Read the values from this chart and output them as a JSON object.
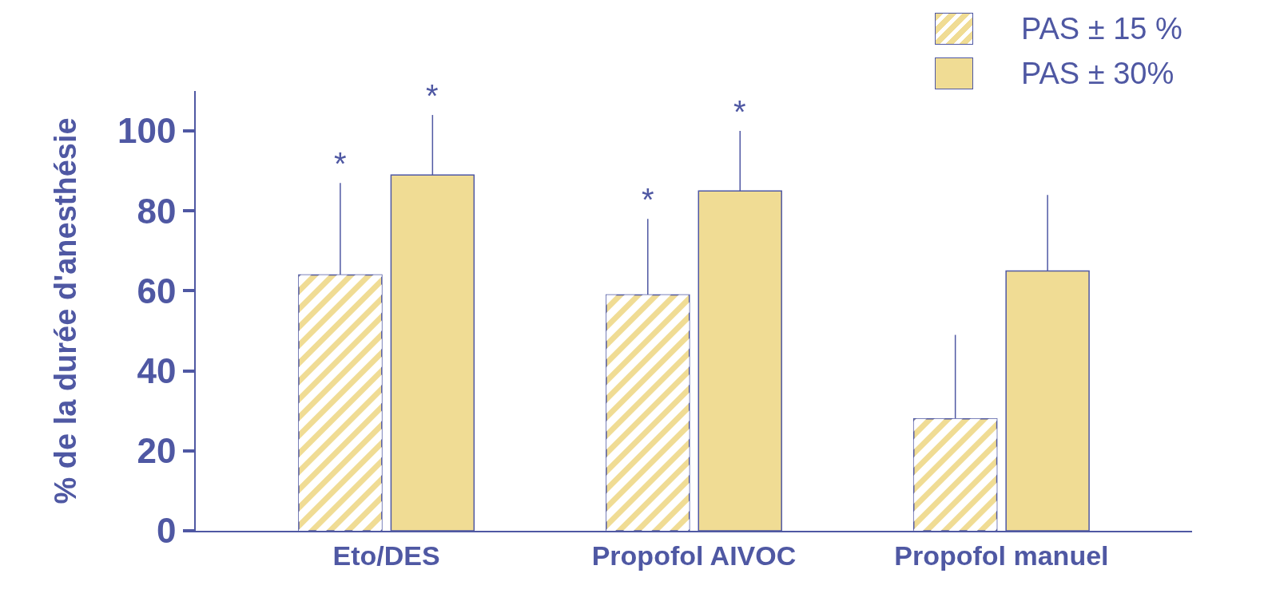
{
  "chart_data": {
    "type": "bar",
    "ylabel": "% de la durée d'anesthésie",
    "categories": [
      "Eto/DES",
      "Propofol AIVOC",
      "Propofol manuel"
    ],
    "series": [
      {
        "name": "PAS ± 15 %",
        "color": "#f0dc94",
        "values": [
          64,
          59,
          28
        ],
        "errors": [
          [
            64,
            87
          ],
          [
            59,
            78
          ],
          [
            28,
            49
          ]
        ]
      },
      {
        "name": "PAS ± 30%",
        "color": "#f0dc94",
        "values": [
          89,
          85,
          65
        ],
        "errors": [
          [
            89,
            104
          ],
          [
            85,
            100
          ],
          [
            65,
            84
          ]
        ]
      }
    ],
    "annotations": [
      "*",
      "*",
      "*",
      "*"
    ],
    "ylim": [
      0,
      110
    ],
    "yticks": [
      0,
      20,
      40,
      60,
      80,
      100
    ],
    "grid": false,
    "legend": "top right"
  }
}
